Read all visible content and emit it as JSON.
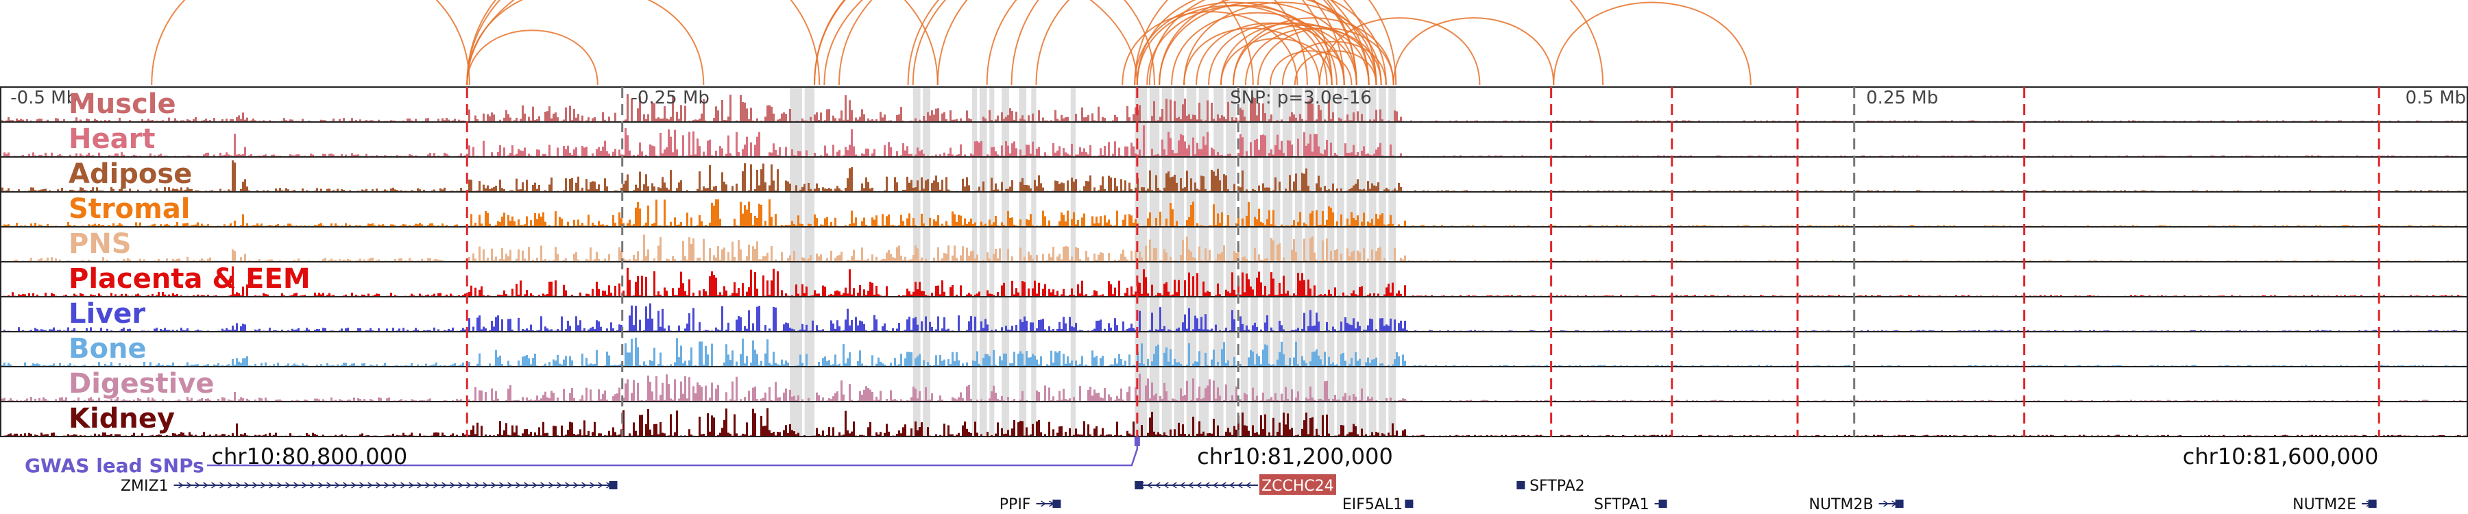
{
  "chart_data": {
    "type": "genome-browser-tracks",
    "chromosome": "chr10",
    "xlim": [
      80700000,
      81700000
    ],
    "axis_ticks": [
      {
        "pos": 80702000,
        "label": "-0.5 Mb"
      },
      {
        "pos": 80952000,
        "label": "-0.25 Mb"
      },
      {
        "pos": 81452000,
        "label": "0.25 Mb"
      },
      {
        "pos": 81702000,
        "label": "0.5 Mb"
      }
    ],
    "center_pos": 81202000,
    "snp_annotation": "SNP: p=3.0e-16",
    "coord_labels": [
      {
        "pos": 80800000,
        "label": "chr10:80,800,000"
      },
      {
        "pos": 81200000,
        "label": "chr10:81,200,000"
      },
      {
        "pos": 81600000,
        "label": "chr10:81,600,000"
      }
    ],
    "tracks": [
      {
        "name": "Muscle",
        "color": "#c8696b"
      },
      {
        "name": "Heart",
        "color": "#d9707f"
      },
      {
        "name": "Adipose",
        "color": "#a65a32"
      },
      {
        "name": "Stromal",
        "color": "#f07a12"
      },
      {
        "name": "PNS",
        "color": "#e8b48e"
      },
      {
        "name": "Placenta & EEM",
        "color": "#e00c0c"
      },
      {
        "name": "Liver",
        "color": "#4a4ad6"
      },
      {
        "name": "Bone",
        "color": "#6aaee2"
      },
      {
        "name": "Digestive",
        "color": "#c98aa8"
      },
      {
        "name": "Kidney",
        "color": "#6e0a0a"
      }
    ],
    "highlight_regions": [
      [
        81020000,
        81025000
      ],
      [
        81026000,
        81030000
      ],
      [
        81070000,
        81073000
      ],
      [
        81074000,
        81077000
      ],
      [
        81094000,
        81096000
      ],
      [
        81097000,
        81100000
      ],
      [
        81101000,
        81103000
      ],
      [
        81106000,
        81109000
      ],
      [
        81113000,
        81116000
      ],
      [
        81118000,
        81120000
      ],
      [
        81134000,
        81136000
      ],
      [
        81160000,
        81165000
      ],
      [
        81166000,
        81170000
      ],
      [
        81171000,
        81175000
      ],
      [
        81176000,
        81180000
      ],
      [
        81181000,
        81185000
      ],
      [
        81186000,
        81190000
      ],
      [
        81192000,
        81196000
      ],
      [
        81197000,
        81201000
      ],
      [
        81203000,
        81206000
      ],
      [
        81207000,
        81210000
      ],
      [
        81212000,
        81215000
      ],
      [
        81216000,
        81219000
      ],
      [
        81220000,
        81224000
      ],
      [
        81225000,
        81228000
      ],
      [
        81229000,
        81233000
      ],
      [
        81234000,
        81237000
      ],
      [
        81238000,
        81241000
      ],
      [
        81242000,
        81245000
      ],
      [
        81246000,
        81250000
      ],
      [
        81251000,
        81254000
      ],
      [
        81255000,
        81258000
      ],
      [
        81259000,
        81262000
      ],
      [
        81263000,
        81266000
      ]
    ],
    "red_dashed_lines": [
      80889000,
      81161000,
      81329000,
      81378000,
      81429000,
      81521000,
      81665000
    ],
    "gray_dashed_lines": [
      80952000,
      81202000,
      81452000
    ],
    "peak_profile": [
      {
        "start": 80700000,
        "end": 80793000,
        "level": 0.12
      },
      {
        "start": 80790000,
        "end": 80795000,
        "level": 1.0
      },
      {
        "start": 80795000,
        "end": 80800000,
        "level": 0.35
      },
      {
        "start": 80800000,
        "end": 80889000,
        "level": 0.1
      },
      {
        "start": 80889000,
        "end": 80952000,
        "level": 0.45
      },
      {
        "start": 80952000,
        "end": 81015000,
        "level": 0.8
      },
      {
        "start": 81015000,
        "end": 81040000,
        "level": 0.35
      },
      {
        "start": 81040000,
        "end": 81045000,
        "level": 0.85
      },
      {
        "start": 81045000,
        "end": 81161000,
        "level": 0.45
      },
      {
        "start": 81161000,
        "end": 81164000,
        "level": 1.0
      },
      {
        "start": 81164000,
        "end": 81240000,
        "level": 0.7
      },
      {
        "start": 81240000,
        "end": 81270000,
        "level": 0.4
      },
      {
        "start": 81270000,
        "end": 81700000,
        "level": 0.03
      }
    ],
    "loops": [
      [
        80761000,
        80890000
      ],
      [
        80889000,
        80942000
      ],
      [
        80889000,
        80985000
      ],
      [
        80889000,
        81032000
      ],
      [
        80889000,
        81080000
      ],
      [
        80889000,
        81161000
      ],
      [
        81030000,
        81208000
      ],
      [
        81030000,
        81168000
      ],
      [
        81034000,
        81255000
      ],
      [
        81040000,
        81230000
      ],
      [
        81068000,
        81245000
      ],
      [
        81070000,
        81258000
      ],
      [
        81080000,
        81250000
      ],
      [
        81100000,
        81240000
      ],
      [
        81110000,
        81266000
      ],
      [
        81155000,
        81226000
      ],
      [
        81160000,
        81240000
      ],
      [
        81161000,
        81238000
      ],
      [
        81161000,
        81255000
      ],
      [
        81165000,
        81242000
      ],
      [
        81166000,
        81262000
      ],
      [
        81170000,
        81250000
      ],
      [
        81170000,
        81258000
      ],
      [
        81175000,
        81245000
      ],
      [
        81180000,
        81235000
      ],
      [
        81180000,
        81260000
      ],
      [
        81185000,
        81245000
      ],
      [
        81190000,
        81250000
      ],
      [
        81195000,
        81255000
      ],
      [
        81195000,
        81240000
      ],
      [
        81200000,
        81265000
      ],
      [
        81200000,
        81258000
      ],
      [
        81205000,
        81260000
      ],
      [
        81210000,
        81265000
      ],
      [
        81215000,
        81248000
      ],
      [
        81220000,
        81262000
      ],
      [
        81225000,
        81258000
      ],
      [
        81120000,
        81250000
      ],
      [
        81265000,
        81330000
      ],
      [
        81330000,
        81410000
      ],
      [
        81160000,
        81350000
      ],
      [
        81235000,
        81300000
      ]
    ],
    "gwas_label": "GWAS lead SNPs",
    "gwas_snp_pos": 81161000,
    "genes": [
      {
        "name": "ZMIZ1",
        "start": 80770000,
        "end": 80950000,
        "row": 0,
        "strand": "+",
        "label_side": "left"
      },
      {
        "name": "PPIF",
        "start": 81120000,
        "end": 81130000,
        "row": 1,
        "strand": "+",
        "label_side": "left"
      },
      {
        "name": "ZCCHC24",
        "start": 81160000,
        "end": 81210000,
        "row": 0,
        "strand": "-",
        "label_side": "right-box"
      },
      {
        "name": "EIF5AL1",
        "start": 81271000,
        "end": 81273000,
        "row": 1,
        "strand": "+",
        "label_side": "left"
      },
      {
        "name": "SFTPA2",
        "start": 81315000,
        "end": 81318000,
        "row": 0,
        "strand": "-",
        "label_side": "right"
      },
      {
        "name": "SFTPA1",
        "start": 81371000,
        "end": 81376000,
        "row": 1,
        "strand": "+",
        "label_side": "left"
      },
      {
        "name": "NUTM2B",
        "start": 81462000,
        "end": 81472000,
        "row": 1,
        "strand": "+",
        "label_side": "left"
      },
      {
        "name": "NUTM2E",
        "start": 81658000,
        "end": 81664000,
        "row": 1,
        "strand": "+",
        "label_side": "left"
      }
    ],
    "loop_color": "#e8722a",
    "snp_color": "#6a5acd"
  }
}
